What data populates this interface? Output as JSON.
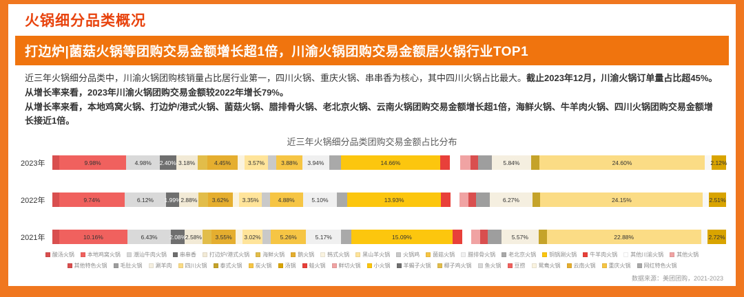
{
  "page": {
    "title": "火锅细分品类概况",
    "banner": "打边炉|菌菇火锅等团购交易金额增长超1倍，川渝火锅团购交易金额居火锅行业TOP1",
    "source_note": "数据来源：美团团购，2021-2023"
  },
  "colors": {
    "frame": "#f0771f",
    "banner": "#f0740e",
    "title": "#e8430d"
  },
  "paragraphs": [
    {
      "segments": [
        {
          "text": "近三年火锅细分品类中，川渝火锅团购核销量占比居行业第一，四川火锅、重庆火锅、串串香为核心，其中四川火锅占比最大。",
          "bold": false
        },
        {
          "text": "截止2023年12月，川渝火锅订单量占比超45%。从增长率来看，2023年川渝火锅团购交易金额较2022年增长79%。",
          "bold": true
        }
      ]
    },
    {
      "segments": [
        {
          "text": "从增长率来看，本地鸡窝火锅、打边炉/港式火锅、菌菇火锅、腊排骨火锅、老北京火锅、云南火锅团购交易金额增长超1倍，海鲜火锅、牛羊肉火锅、四川火锅团购交易金额增长接近1倍。",
          "bold": true
        }
      ]
    }
  ],
  "chart_data": {
    "type": "bar",
    "stacked": true,
    "orientation": "horizontal",
    "title": "近三年火锅细分品类团购交易金额占比分布",
    "unit": "%",
    "xlim": [
      0,
      100
    ],
    "grid": false,
    "legend_position": "bottom",
    "categories": [
      "2023年",
      "2022年",
      "2021年"
    ],
    "bars": [
      {
        "year": "2023年",
        "segments": [
          {
            "v": 1.0,
            "c": "#d94f4f"
          },
          {
            "v": 9.98,
            "c": "#f0615e",
            "l": "9.98%"
          },
          {
            "v": 4.98,
            "c": "#d9d9d9",
            "l": "4.98%"
          },
          {
            "v": 2.4,
            "c": "#6f6f6f",
            "l": "2.40%",
            "t": "#ffffff"
          },
          {
            "v": 3.18,
            "c": "#f2ead6",
            "l": "3.18%"
          },
          {
            "v": 1.5,
            "c": "#e2bd4a"
          },
          {
            "v": 4.45,
            "c": "#e5ae2f",
            "l": "4.45%"
          },
          {
            "v": 1.0,
            "c": "#faf3e0"
          },
          {
            "v": 3.57,
            "c": "#ffe49a",
            "l": "3.57%"
          },
          {
            "v": 1.2,
            "c": "#c9c9c9"
          },
          {
            "v": 3.88,
            "c": "#f6c544",
            "l": "3.88%"
          },
          {
            "v": 3.94,
            "c": "#f0f0f0",
            "l": "3.94%"
          },
          {
            "v": 1.8,
            "c": "#a9a9a9"
          },
          {
            "v": 14.66,
            "c": "#fcc60e",
            "l": "14.66%"
          },
          {
            "v": 1.5,
            "c": "#e8403a"
          },
          {
            "v": 1.5,
            "c": "#ffffff"
          },
          {
            "v": 1.5,
            "c": "#f0a3a3"
          },
          {
            "v": 1.2,
            "c": "#d94f4f"
          },
          {
            "v": 2.0,
            "c": "#9e9e9e"
          },
          {
            "v": 5.84,
            "c": "#f5efe0",
            "l": "5.84%"
          },
          {
            "v": 1.2,
            "c": "#c5a32a"
          },
          {
            "v": 24.6,
            "c": "#fbdc85",
            "l": "24.60%"
          },
          {
            "v": 1.0,
            "c": "#f7f7f7"
          },
          {
            "v": 2.12,
            "c": "#d9a400",
            "l": "2.12%"
          }
        ]
      },
      {
        "year": "2022年",
        "segments": [
          {
            "v": 1.0,
            "c": "#d94f4f"
          },
          {
            "v": 9.74,
            "c": "#f0615e",
            "l": "9.74%"
          },
          {
            "v": 6.12,
            "c": "#d9d9d9",
            "l": "6.12%"
          },
          {
            "v": 1.99,
            "c": "#6f6f6f",
            "l": "1.99%",
            "t": "#ffffff"
          },
          {
            "v": 2.88,
            "c": "#f2ead6",
            "l": "2.88%"
          },
          {
            "v": 1.4,
            "c": "#e2bd4a"
          },
          {
            "v": 3.62,
            "c": "#e5ae2f",
            "l": "3.62%"
          },
          {
            "v": 1.0,
            "c": "#faf3e0"
          },
          {
            "v": 3.35,
            "c": "#ffe49a",
            "l": "3.35%"
          },
          {
            "v": 1.2,
            "c": "#c9c9c9"
          },
          {
            "v": 4.88,
            "c": "#f6c544",
            "l": "4.88%"
          },
          {
            "v": 5.1,
            "c": "#f0f0f0",
            "l": "5.10%"
          },
          {
            "v": 1.5,
            "c": "#a9a9a9"
          },
          {
            "v": 13.93,
            "c": "#fcc60e",
            "l": "13.93%"
          },
          {
            "v": 1.4,
            "c": "#e8403a"
          },
          {
            "v": 1.3,
            "c": "#ffffff"
          },
          {
            "v": 1.4,
            "c": "#f0a3a3"
          },
          {
            "v": 1.1,
            "c": "#d94f4f"
          },
          {
            "v": 2.06,
            "c": "#9e9e9e"
          },
          {
            "v": 6.27,
            "c": "#f5efe0",
            "l": "6.27%"
          },
          {
            "v": 1.2,
            "c": "#c5a32a"
          },
          {
            "v": 24.15,
            "c": "#fbdc85",
            "l": "24.15%"
          },
          {
            "v": 0.9,
            "c": "#f7f7f7"
          },
          {
            "v": 2.51,
            "c": "#d9a400",
            "l": "2.51%"
          }
        ]
      },
      {
        "year": "2021年",
        "segments": [
          {
            "v": 1.0,
            "c": "#d94f4f"
          },
          {
            "v": 10.16,
            "c": "#f0615e",
            "l": "10.16%"
          },
          {
            "v": 6.43,
            "c": "#d9d9d9",
            "l": "6.43%"
          },
          {
            "v": 2.08,
            "c": "#6f6f6f",
            "l": "2.08%",
            "t": "#ffffff"
          },
          {
            "v": 2.58,
            "c": "#f2ead6",
            "l": "2.58%"
          },
          {
            "v": 1.4,
            "c": "#e2bd4a"
          },
          {
            "v": 3.55,
            "c": "#e5ae2f",
            "l": "3.55%"
          },
          {
            "v": 1.0,
            "c": "#faf3e0"
          },
          {
            "v": 3.02,
            "c": "#ffe49a",
            "l": "3.02%"
          },
          {
            "v": 1.2,
            "c": "#c9c9c9"
          },
          {
            "v": 5.26,
            "c": "#f6c544",
            "l": "5.26%"
          },
          {
            "v": 5.17,
            "c": "#f0f0f0",
            "l": "5.17%"
          },
          {
            "v": 1.5,
            "c": "#a9a9a9"
          },
          {
            "v": 15.09,
            "c": "#fcc60e",
            "l": "15.09%"
          },
          {
            "v": 1.4,
            "c": "#e8403a"
          },
          {
            "v": 1.3,
            "c": "#ffffff"
          },
          {
            "v": 1.4,
            "c": "#f0a3a3"
          },
          {
            "v": 1.1,
            "c": "#d94f4f"
          },
          {
            "v": 2.0,
            "c": "#9e9e9e"
          },
          {
            "v": 5.57,
            "c": "#f5efe0",
            "l": "5.57%"
          },
          {
            "v": 1.2,
            "c": "#c5a32a"
          },
          {
            "v": 22.88,
            "c": "#fbdc85",
            "l": "22.88%"
          },
          {
            "v": 0.99,
            "c": "#f7f7f7"
          },
          {
            "v": 2.72,
            "c": "#d9a400",
            "l": "2.72%"
          }
        ]
      }
    ],
    "legend_rows": [
      [
        {
          "label": "酸汤火锅",
          "color": "#d94f4f"
        },
        {
          "label": "本地鸡窝火锅",
          "color": "#f0615e"
        },
        {
          "label": "潮汕牛肉火锅",
          "color": "#d9d9d9"
        },
        {
          "label": "串串香",
          "color": "#6f6f6f"
        },
        {
          "label": "打边炉/港式火锅",
          "color": "#f2ead6"
        },
        {
          "label": "海鲜火锅",
          "color": "#e2bd4a"
        },
        {
          "label": "鹅火锅",
          "color": "#e5ae2f"
        },
        {
          "label": "韩式火锅",
          "color": "#faf3e0"
        },
        {
          "label": "黑山羊火锅",
          "color": "#ffe49a"
        },
        {
          "label": "火锅鸡",
          "color": "#c9c9c9"
        },
        {
          "label": "菌菇火锅",
          "color": "#f6c544"
        },
        {
          "label": "腊排骨火锅",
          "color": "#f0f0f0"
        },
        {
          "label": "老北京火锅",
          "color": "#a9a9a9"
        },
        {
          "label": "铜锅涮火锅",
          "color": "#fcc60e"
        },
        {
          "label": "牛羊肉火锅",
          "color": "#e8403a"
        },
        {
          "label": "其他川渝火锅",
          "color": "#ffffff"
        },
        {
          "label": "其他火锅",
          "color": "#f0a3a3"
        }
      ],
      [
        {
          "label": "其他特色火锅",
          "color": "#d94f4f"
        },
        {
          "label": "毛肚火锅",
          "color": "#9e9e9e"
        },
        {
          "label": "涮羊肉",
          "color": "#f5efe0"
        },
        {
          "label": "四川火锅",
          "color": "#fbdc85"
        },
        {
          "label": "泰式火锅",
          "color": "#c5a32a"
        },
        {
          "label": "炭火锅",
          "color": "#f6c544"
        },
        {
          "label": "汤锅",
          "color": "#d9a400"
        },
        {
          "label": "蛙火锅",
          "color": "#e8403a"
        },
        {
          "label": "鲜切火锅",
          "color": "#f0a3a3"
        },
        {
          "label": "小火锅",
          "color": "#fcc60e"
        },
        {
          "label": "羊蝎子火锅",
          "color": "#6f6f6f"
        },
        {
          "label": "椰子鸡火锅",
          "color": "#e2bd4a"
        },
        {
          "label": "鱼火锅",
          "color": "#d9d9d9"
        },
        {
          "label": "豆捞",
          "color": "#f0615e"
        },
        {
          "label": "鸳鸯火锅",
          "color": "#faf3e0"
        },
        {
          "label": "云南火锅",
          "color": "#e5ae2f"
        },
        {
          "label": "重庆火锅",
          "color": "#f6c544"
        },
        {
          "label": "网红特色火锅",
          "color": "#a9a9a9"
        }
      ]
    ]
  }
}
